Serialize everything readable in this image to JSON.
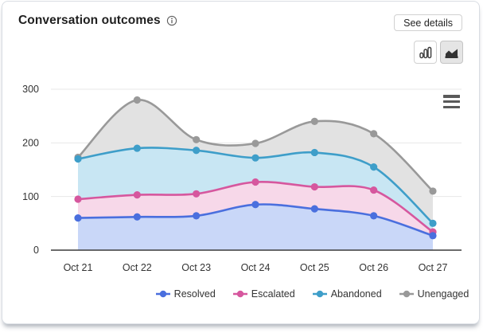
{
  "card": {
    "title": "Conversation outcomes",
    "see_details_label": "See details",
    "icons": {
      "info": "info-icon",
      "column_chart": "column-chart-icon",
      "area_chart": "area-chart-icon",
      "context_menu": "hamburger-menu-icon"
    },
    "chart_type_selected": "area"
  },
  "chart_data": {
    "type": "area",
    "title": "Conversation outcomes",
    "categories": [
      "Oct 21",
      "Oct 22",
      "Oct 23",
      "Oct 24",
      "Oct 25",
      "Oct 26",
      "Oct 27"
    ],
    "series": [
      {
        "name": "Resolved",
        "color": "#4a6fde",
        "fill": "#c9d7f8",
        "values": [
          60,
          62,
          64,
          85,
          77,
          64,
          27
        ]
      },
      {
        "name": "Escalated",
        "color": "#d6579e",
        "fill": "#f7d8e9",
        "values": [
          95,
          103,
          105,
          127,
          118,
          112,
          34
        ]
      },
      {
        "name": "Abandoned",
        "color": "#3e9ec9",
        "fill": "#c8e6f3",
        "values": [
          170,
          190,
          186,
          172,
          182,
          155,
          50
        ]
      },
      {
        "name": "Unengaged",
        "color": "#999999",
        "fill": "#e2e2e2",
        "values": [
          173,
          280,
          206,
          199,
          240,
          217,
          110
        ]
      }
    ],
    "ylim": [
      0,
      300
    ],
    "yticks": [
      0,
      100,
      200,
      300
    ],
    "xlabel": "",
    "ylabel": "",
    "grid": true,
    "legend_position": "bottom"
  }
}
